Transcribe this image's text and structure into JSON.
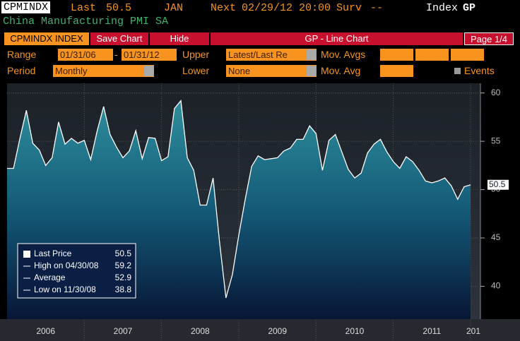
{
  "header": {
    "ticker": "CPMINDX",
    "last_label": "Last",
    "last_value": 50.5,
    "month": "JAN",
    "next_label": "Next",
    "next_date": "02/29/12 20:00",
    "surv_label": "Surv",
    "surv_value": "--",
    "index_label": "Index",
    "function": "GP",
    "security_name": "China Manufacturing PMI SA"
  },
  "toolbar": {
    "security": "CPMINDX INDEX",
    "save": "Save Chart",
    "hide": "Hide",
    "title": "GP - Line Chart",
    "page": "Page 1/4"
  },
  "controls": {
    "range_label": "Range",
    "range_start": "01/31/06",
    "range_sep": "-",
    "range_end": "01/31/12",
    "upper_label": "Upper",
    "upper_value": "Latest/Last Re",
    "mov_avgs_label": "Mov. Avgs",
    "period_label": "Period",
    "period_value": "Monthly",
    "lower_label": "Lower",
    "lower_value": "None",
    "mov_avg_label": "Mov. Avg",
    "events_label": "Events"
  },
  "chart_data": {
    "type": "line",
    "color": "#ffffff",
    "grid": true,
    "x": [
      "01/31/06",
      "02/28/06",
      "03/31/06",
      "04/30/06",
      "05/31/06",
      "06/30/06",
      "07/31/06",
      "08/31/06",
      "09/30/06",
      "10/31/06",
      "11/30/06",
      "12/31/06",
      "01/31/07",
      "02/28/07",
      "03/31/07",
      "04/30/07",
      "05/31/07",
      "06/30/07",
      "07/31/07",
      "08/31/07",
      "09/30/07",
      "10/31/07",
      "11/30/07",
      "12/31/07",
      "01/31/08",
      "02/29/08",
      "03/31/08",
      "04/30/08",
      "05/31/08",
      "06/30/08",
      "07/31/08",
      "08/31/08",
      "09/30/08",
      "10/31/08",
      "11/30/08",
      "12/31/08",
      "01/31/09",
      "02/28/09",
      "03/31/09",
      "04/30/09",
      "05/31/09",
      "06/30/09",
      "07/31/09",
      "08/31/09",
      "09/30/09",
      "10/31/09",
      "11/30/09",
      "12/31/09",
      "01/31/10",
      "02/28/10",
      "03/31/10",
      "04/30/10",
      "05/31/10",
      "06/30/10",
      "07/31/10",
      "08/31/10",
      "09/30/10",
      "10/31/10",
      "11/30/10",
      "12/31/10",
      "01/31/11",
      "02/28/11",
      "03/31/11",
      "04/30/11",
      "05/31/11",
      "06/30/11",
      "07/31/11",
      "08/31/11",
      "09/30/11",
      "10/31/11",
      "11/30/11",
      "12/31/11",
      "01/31/12"
    ],
    "values": [
      52.2,
      52.2,
      55.3,
      58.2,
      54.8,
      54.1,
      52.5,
      53.3,
      57.0,
      54.7,
      55.3,
      54.8,
      55.1,
      53.1,
      56.1,
      58.6,
      55.7,
      54.4,
      53.3,
      54.0,
      56.1,
      53.2,
      55.4,
      55.3,
      53.0,
      53.4,
      58.4,
      59.2,
      53.3,
      52.0,
      48.4,
      48.4,
      51.2,
      44.6,
      38.8,
      41.2,
      45.3,
      49.0,
      52.4,
      53.5,
      53.1,
      53.2,
      53.3,
      54.0,
      54.3,
      55.2,
      55.2,
      56.6,
      55.8,
      52.0,
      55.1,
      55.7,
      53.9,
      52.1,
      51.2,
      51.7,
      53.8,
      54.7,
      55.2,
      53.9,
      52.9,
      52.2,
      53.4,
      52.9,
      52.0,
      50.9,
      50.7,
      50.9,
      51.2,
      50.4,
      49.0,
      50.3,
      50.5
    ],
    "ylim": [
      36.6,
      61
    ],
    "yticks": [
      40,
      45,
      50,
      55,
      60
    ],
    "year_labels": [
      "2006",
      "2007",
      "2008",
      "2009",
      "2010",
      "2011",
      "201"
    ],
    "last_value_label": 50.5,
    "legend": [
      {
        "label": "Last Price",
        "value": 50.5
      },
      {
        "label": "High on 04/30/08",
        "value": 59.2
      },
      {
        "label": "Average",
        "value": 52.9
      },
      {
        "label": "Low on 11/30/08",
        "value": 38.8
      }
    ]
  }
}
